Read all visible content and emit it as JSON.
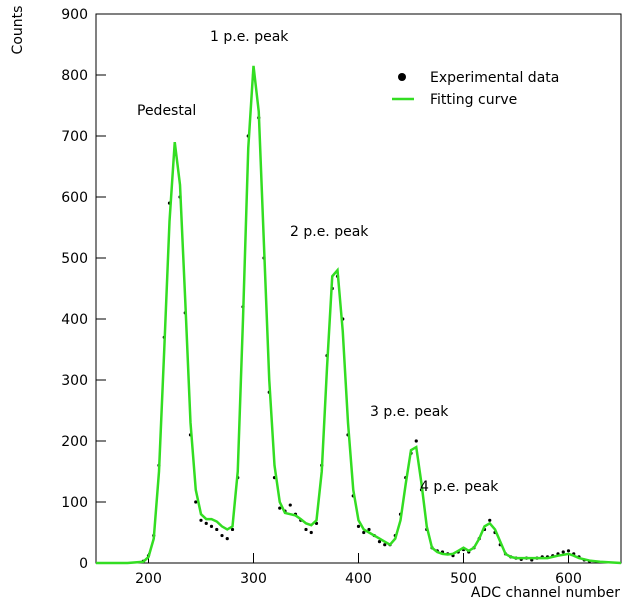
{
  "chart_data": {
    "type": "scatter",
    "x_label": "ADC channel number",
    "y_label": "Counts",
    "xlim": [
      150,
      650
    ],
    "xticks": [
      200,
      300,
      400,
      500,
      600
    ],
    "ylim": [
      0,
      900
    ],
    "yticks": [
      0,
      100,
      200,
      300,
      400,
      500,
      600,
      700,
      800,
      900
    ],
    "legend": "upper right",
    "annotations": [
      "Pedestal",
      "1 p.e. peak",
      "2 p.e. peak",
      "3 p.e. peak",
      "4 p.e. peak"
    ],
    "series": [
      {
        "name": "Experimental data",
        "mode": "markers",
        "color": "#000000",
        "x": [
          195,
          200,
          205,
          210,
          215,
          220,
          225,
          230,
          235,
          240,
          245,
          250,
          255,
          260,
          265,
          270,
          275,
          280,
          285,
          290,
          295,
          300,
          305,
          310,
          315,
          320,
          325,
          330,
          335,
          340,
          345,
          350,
          355,
          360,
          365,
          370,
          375,
          380,
          385,
          390,
          395,
          400,
          405,
          410,
          415,
          420,
          425,
          430,
          435,
          440,
          445,
          450,
          455,
          460,
          465,
          470,
          475,
          480,
          485,
          490,
          495,
          500,
          505,
          510,
          515,
          520,
          525,
          530,
          535,
          540,
          545,
          550,
          555,
          560,
          565,
          570,
          575,
          580,
          585,
          590,
          595,
          600,
          605,
          610,
          615,
          620
        ],
        "values": [
          3,
          12,
          45,
          160,
          370,
          590,
          670,
          600,
          410,
          210,
          100,
          70,
          65,
          60,
          55,
          45,
          40,
          55,
          140,
          420,
          700,
          800,
          730,
          500,
          280,
          140,
          90,
          85,
          95,
          80,
          70,
          55,
          50,
          65,
          160,
          340,
          450,
          470,
          400,
          210,
          110,
          60,
          50,
          55,
          45,
          35,
          30,
          30,
          45,
          80,
          140,
          180,
          200,
          120,
          55,
          25,
          20,
          18,
          15,
          12,
          18,
          22,
          18,
          25,
          40,
          55,
          70,
          50,
          30,
          15,
          10,
          8,
          6,
          8,
          5,
          8,
          10,
          10,
          12,
          15,
          18,
          20,
          15,
          10,
          5,
          3
        ]
      },
      {
        "name": "Fitting curve",
        "mode": "line",
        "color": "#33dd22",
        "x": [
          150,
          180,
          195,
          200,
          205,
          210,
          215,
          220,
          225,
          230,
          235,
          240,
          245,
          250,
          255,
          260,
          265,
          270,
          275,
          280,
          285,
          290,
          295,
          300,
          305,
          310,
          315,
          320,
          325,
          330,
          335,
          340,
          345,
          350,
          355,
          360,
          365,
          370,
          375,
          380,
          385,
          390,
          395,
          400,
          405,
          410,
          415,
          420,
          425,
          430,
          435,
          440,
          445,
          450,
          455,
          460,
          465,
          470,
          475,
          480,
          485,
          490,
          495,
          500,
          505,
          510,
          515,
          520,
          525,
          530,
          535,
          540,
          545,
          550,
          560,
          570,
          580,
          590,
          600,
          605,
          610,
          620,
          630,
          650
        ],
        "values": [
          0,
          0,
          2,
          10,
          40,
          150,
          350,
          560,
          690,
          620,
          430,
          230,
          120,
          80,
          72,
          72,
          68,
          60,
          55,
          60,
          150,
          400,
          680,
          815,
          740,
          520,
          300,
          160,
          100,
          82,
          80,
          78,
          72,
          65,
          62,
          70,
          150,
          320,
          470,
          480,
          380,
          230,
          120,
          70,
          55,
          50,
          45,
          40,
          35,
          30,
          40,
          70,
          130,
          185,
          190,
          130,
          60,
          25,
          18,
          15,
          14,
          15,
          20,
          25,
          20,
          25,
          40,
          60,
          65,
          55,
          35,
          15,
          10,
          8,
          8,
          8,
          8,
          12,
          15,
          12,
          8,
          4,
          2,
          0
        ]
      }
    ]
  }
}
